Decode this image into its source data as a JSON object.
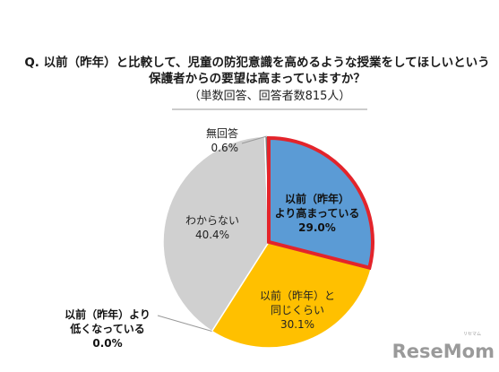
{
  "chart_data": {
    "type": "pie",
    "title_lines": [
      "Q. 以前（昨年）と比較して、児童の防犯意識を高めるような授業をしてほしいという",
      "保護者からの要望は高まっていますか？"
    ],
    "subtitle": "（単数回答、回答者数815人）",
    "slices": [
      {
        "label_lines": [
          "以前（昨年）",
          "より高まっている"
        ],
        "value_text": "29.0%",
        "value": 29.0,
        "color": "#5b9bd5",
        "highlight": true
      },
      {
        "label_lines": [
          "以前（昨年）と",
          "同じくらい"
        ],
        "value_text": "30.1%",
        "value": 30.1,
        "color": "#ffc000",
        "highlight": false
      },
      {
        "label_lines": [
          "以前（昨年）より",
          "低くなっている"
        ],
        "value_text": "0.0%",
        "value": 0.0,
        "color": "#ed7d31",
        "highlight": false
      },
      {
        "label_lines": [
          "わからない"
        ],
        "value_text": "40.4%",
        "value": 40.4,
        "color": "#d0d0d0",
        "highlight": false
      },
      {
        "label_lines": [
          "無回答"
        ],
        "value_text": "0.6%",
        "value": 0.6,
        "color": "#7f7f7f",
        "highlight": false
      }
    ],
    "start_angle": "12 o'clock",
    "direction": "clockwise",
    "highlight_color": "#e3242b"
  },
  "branding": {
    "logo_text": "ReseMom",
    "logo_small": "リセマム"
  }
}
